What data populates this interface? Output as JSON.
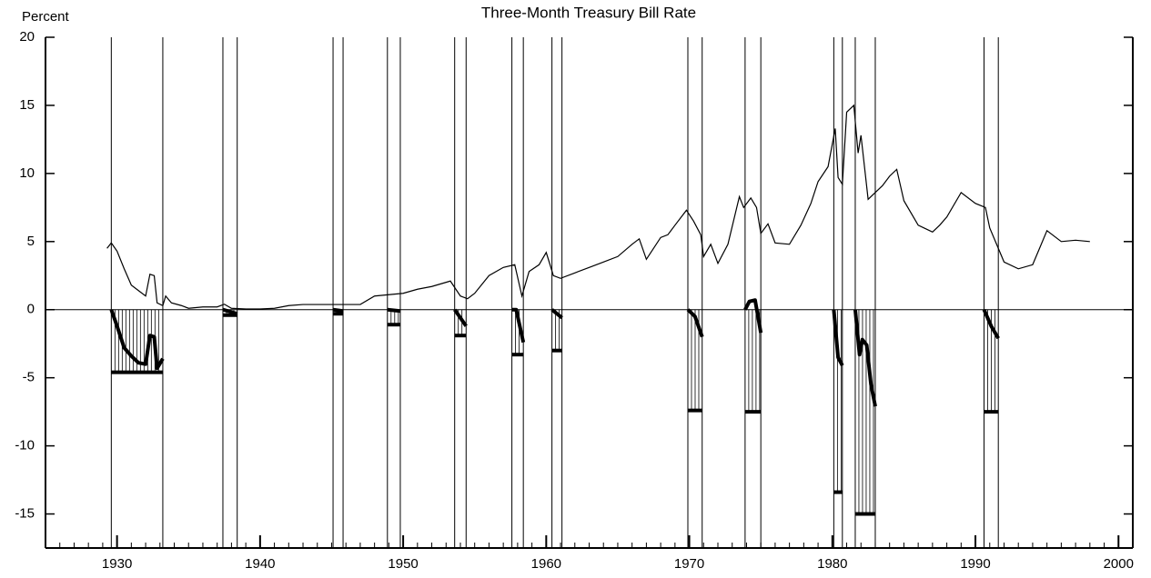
{
  "chart_data": {
    "type": "line",
    "title": "Three-Month Treasury Bill Rate",
    "ylabel": "Percent",
    "xlim": [
      1925,
      2001
    ],
    "ylim": [
      -17.5,
      20
    ],
    "xticks": [
      1930,
      1940,
      1950,
      1960,
      1970,
      1980,
      1990,
      2000
    ],
    "yticks": [
      20,
      15,
      10,
      5,
      0,
      -5,
      -10,
      -15
    ],
    "color": "#000000",
    "series": [
      {
        "color": "#000000",
        "x": [
          1929.3,
          1929.6,
          1930,
          1930.5,
          1931,
          1931.5,
          1932,
          1932.3,
          1932.6,
          1932.8,
          1933.2,
          1933.4,
          1933.8,
          1934.5,
          1935,
          1936,
          1937,
          1937.5,
          1938,
          1939,
          1940,
          1941,
          1942,
          1943,
          1945,
          1947,
          1948,
          1949,
          1950,
          1951,
          1952,
          1953.3,
          1954,
          1954.5,
          1955,
          1956,
          1957,
          1957.8,
          1958.3,
          1958.8,
          1959.5,
          1960,
          1960.5,
          1961,
          1962,
          1963,
          1964,
          1965,
          1966,
          1966.5,
          1967,
          1968,
          1968.5,
          1969,
          1969.8,
          1970.3,
          1970.8,
          1971,
          1971.5,
          1972,
          1972.7,
          1973.5,
          1973.8,
          1974.3,
          1974.7,
          1975,
          1975.5,
          1976,
          1977,
          1977.8,
          1978.5,
          1979,
          1979.7,
          1980.2,
          1980.4,
          1980.7,
          1981,
          1981.5,
          1981.8,
          1982,
          1982.5,
          1983,
          1983.5,
          1984,
          1984.5,
          1985,
          1986,
          1987,
          1987.5,
          1988,
          1989,
          1990,
          1990.7,
          1991,
          1992,
          1993,
          1994,
          1995,
          1996,
          1997,
          1998
        ],
        "values": [
          4.5,
          4.9,
          4.3,
          3,
          1.8,
          1.4,
          1.0,
          2.6,
          2.5,
          0.5,
          0.3,
          1.0,
          0.5,
          0.3,
          0.1,
          0.2,
          0.2,
          0.4,
          0.1,
          0.05,
          0.05,
          0.1,
          0.3,
          0.38,
          0.38,
          0.38,
          1.0,
          1.1,
          1.2,
          1.5,
          1.7,
          2.1,
          1.0,
          0.8,
          1.2,
          2.5,
          3.1,
          3.3,
          1.0,
          2.8,
          3.3,
          4.2,
          2.5,
          2.3,
          2.7,
          3.1,
          3.5,
          3.9,
          4.8,
          5.2,
          3.7,
          5.3,
          5.5,
          6.2,
          7.3,
          6.5,
          5.5,
          3.9,
          4.8,
          3.4,
          4.8,
          8.3,
          7.5,
          8.2,
          7.5,
          5.6,
          6.3,
          4.9,
          4.8,
          6.2,
          7.8,
          9.4,
          10.5,
          13.3,
          9.7,
          9.2,
          14.5,
          15,
          11.5,
          12.8,
          8.1,
          8.6,
          9.1,
          9.8,
          10.3,
          8,
          6.2,
          5.7,
          6.2,
          6.8,
          8.6,
          7.8,
          7.5,
          6,
          3.5,
          3,
          3.3,
          5.8,
          5,
          5.1,
          5.0
        ]
      }
    ],
    "recessions": [
      {
        "start": 1929.6,
        "end": 1933.2,
        "floor": -4.6,
        "change": {
          "x": [
            1929.6,
            1930,
            1930.5,
            1931,
            1931.5,
            1932,
            1932.3,
            1932.6,
            1932.8,
            1933.2
          ],
          "values": [
            0,
            -1.2,
            -2.8,
            -3.4,
            -3.9,
            -4.0,
            -1.9,
            -2.0,
            -4.3,
            -3.6
          ]
        }
      },
      {
        "start": 1937.4,
        "end": 1938.4,
        "floor": -0.4,
        "change": {
          "x": [
            1937.4,
            1938.4
          ],
          "values": [
            0,
            -0.3
          ]
        }
      },
      {
        "start": 1945.1,
        "end": 1945.8,
        "floor": -0.3,
        "change": {
          "x": [
            1945.1,
            1945.8
          ],
          "values": [
            0,
            -0.1
          ]
        }
      },
      {
        "start": 1948.9,
        "end": 1949.8,
        "floor": -1.1,
        "change": {
          "x": [
            1948.9,
            1949.8
          ],
          "values": [
            0,
            -0.1
          ]
        }
      },
      {
        "start": 1953.6,
        "end": 1954.4,
        "floor": -1.9,
        "change": {
          "x": [
            1953.6,
            1954.4
          ],
          "values": [
            0,
            -1.2
          ]
        }
      },
      {
        "start": 1957.6,
        "end": 1958.4,
        "floor": -3.3,
        "change": {
          "x": [
            1957.6,
            1957.9,
            1958.4
          ],
          "values": [
            0,
            0,
            -2.4
          ]
        }
      },
      {
        "start": 1960.4,
        "end": 1961.1,
        "floor": -3.0,
        "change": {
          "x": [
            1960.4,
            1961.1
          ],
          "values": [
            0,
            -0.6
          ]
        }
      },
      {
        "start": 1969.9,
        "end": 1970.9,
        "floor": -7.4,
        "change": {
          "x": [
            1969.9,
            1970.4,
            1970.9
          ],
          "values": [
            0,
            -0.5,
            -2.0
          ]
        }
      },
      {
        "start": 1973.9,
        "end": 1975.0,
        "floor": -7.5,
        "change": {
          "x": [
            1973.9,
            1974.2,
            1974.6,
            1975.0
          ],
          "values": [
            0,
            0.6,
            0.7,
            -1.7
          ]
        }
      },
      {
        "start": 1980.1,
        "end": 1980.7,
        "floor": -13.4,
        "change": {
          "x": [
            1980.1,
            1980.4,
            1980.7
          ],
          "values": [
            0,
            -3.5,
            -4.1
          ]
        }
      },
      {
        "start": 1981.6,
        "end": 1983.0,
        "floor": -15.0,
        "change": {
          "x": [
            1981.6,
            1981.9,
            1982.1,
            1982.4,
            1982.7,
            1983.0
          ],
          "values": [
            0,
            -3.3,
            -2.2,
            -2.6,
            -5.5,
            -7.1
          ]
        }
      },
      {
        "start": 1990.6,
        "end": 1991.6,
        "floor": -7.5,
        "change": {
          "x": [
            1990.6,
            1991.1,
            1991.6
          ],
          "values": [
            0,
            -1.2,
            -2.1
          ]
        }
      }
    ]
  }
}
